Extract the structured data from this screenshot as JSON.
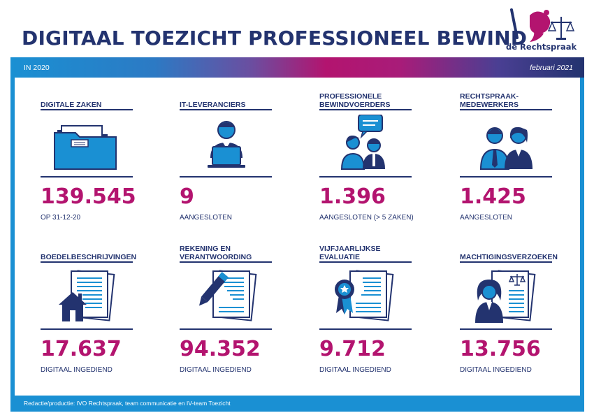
{
  "header": {
    "title": "DIGITAAL TOEZICHT PROFESSIONEEL BEWIND",
    "logo_text": "de Rechtspraak",
    "period": "IN 2020",
    "date": "februari 2021"
  },
  "colors": {
    "navy": "#23336f",
    "blue": "#1a90d3",
    "magenta": "#b3146f"
  },
  "cards": [
    {
      "label": "DIGITALE ZAKEN",
      "value": "139.545",
      "sub": "OP 31-12-20",
      "icon": "folder-icon"
    },
    {
      "label": "IT-LEVERANCIERS",
      "value": "9",
      "sub": "AANGESLOTEN",
      "icon": "laptop-user-icon"
    },
    {
      "label": "PROFESSIONELE\nBEWINDVOERDERS",
      "value": "1.396",
      "sub": "AANGESLOTEN (> 5 ZAKEN)",
      "icon": "people-chat-icon"
    },
    {
      "label": "RECHTSPRAAK-\nMEDEWERKERS",
      "value": "1.425",
      "sub": "AANGESLOTEN",
      "icon": "staff-icon"
    },
    {
      "label": "BOEDELBESCHRIJVINGEN",
      "value": "17.637",
      "sub": "DIGITAAL INGEDIEND",
      "icon": "house-document-icon"
    },
    {
      "label": "REKENING EN\nVERANTWOORDING",
      "value": "94.352",
      "sub": "DIGITAAL INGEDIEND",
      "icon": "pen-document-icon"
    },
    {
      "label": "VIJFJAARLIJKSE\nEVALUATIE",
      "value": "9.712",
      "sub": "DIGITAAL INGEDIEND",
      "icon": "award-document-icon"
    },
    {
      "label": "MACHTIGINGSVERZOEKEN",
      "value": "13.756",
      "sub": "DIGITAAL INGEDIEND",
      "icon": "judge-document-icon"
    }
  ],
  "footer": {
    "text": "Redactie/productie: IVO Rechtspraak, team communicatie en IV-team Toezicht"
  }
}
